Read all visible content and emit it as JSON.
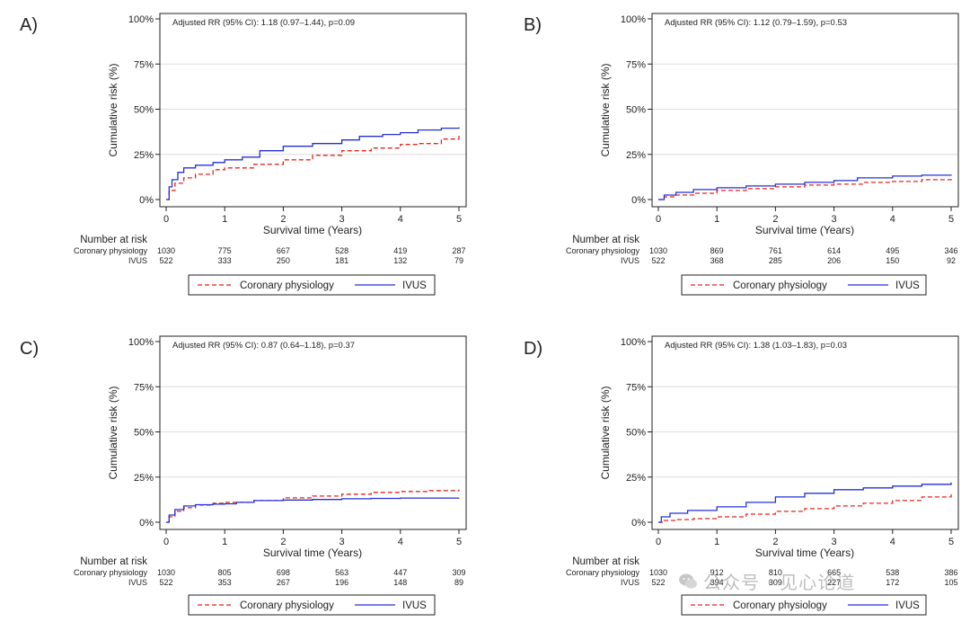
{
  "figure": {
    "watermark_text": "公众号 · 见心论道",
    "colors": {
      "coronary": "#e8251f",
      "ivus": "#2330d6",
      "axis": "#222222",
      "grid": "#dddddd"
    }
  },
  "chart_data": [
    {
      "type": "line",
      "panel_label": "A)",
      "title": "Adjusted RR (95% CI): 1.18 (0.97–1.44), p=0.09",
      "xlabel": "Survival time (Years)",
      "ylabel": "Cumulative risk (%)",
      "xlim": [
        0,
        5
      ],
      "ylim": [
        0,
        100
      ],
      "x_ticks": [
        "0",
        "1",
        "2",
        "3",
        "4",
        "5"
      ],
      "y_ticks": [
        "0%",
        "25%",
        "50%",
        "75%",
        "100%"
      ],
      "series": [
        {
          "name": "Coronary physiology",
          "style": "dashed",
          "x": [
            0,
            0.05,
            0.15,
            0.3,
            0.5,
            0.8,
            1.0,
            1.5,
            2.0,
            2.5,
            3.0,
            3.5,
            4.0,
            4.3,
            4.7,
            5.0
          ],
          "y": [
            0,
            5,
            9,
            12,
            14,
            16.5,
            17.5,
            19.5,
            22,
            24.5,
            27,
            28.5,
            30.5,
            31,
            33.5,
            35.5
          ]
        },
        {
          "name": "IVUS",
          "style": "solid",
          "x": [
            0,
            0.05,
            0.1,
            0.2,
            0.3,
            0.5,
            0.8,
            1.0,
            1.3,
            1.6,
            2.0,
            2.5,
            3.0,
            3.3,
            3.7,
            4.0,
            4.3,
            4.7,
            5.0
          ],
          "y": [
            0,
            7,
            11,
            15,
            17.5,
            19,
            20.5,
            22,
            23.5,
            27,
            29.5,
            31,
            33,
            35,
            36,
            37,
            38.5,
            39.5,
            40
          ]
        }
      ],
      "legend": [
        "Coronary physiology",
        "IVUS"
      ],
      "risk_table": {
        "header": "Number at risk",
        "rows": [
          {
            "label": "Coronary physiology",
            "values": [
              "1030",
              "775",
              "667",
              "528",
              "419",
              "287"
            ]
          },
          {
            "label": "IVUS",
            "values": [
              "522",
              "333",
              "250",
              "181",
              "132",
              "79"
            ]
          }
        ]
      }
    },
    {
      "type": "line",
      "panel_label": "B)",
      "title": "Adjusted RR (95% CI): 1.12 (0.79–1.59), p=0.53",
      "xlabel": "Survival time (Years)",
      "ylabel": "Cumulative risk (%)",
      "xlim": [
        0,
        5
      ],
      "ylim": [
        0,
        100
      ],
      "x_ticks": [
        "0",
        "1",
        "2",
        "3",
        "4",
        "5"
      ],
      "y_ticks": [
        "0%",
        "25%",
        "50%",
        "75%",
        "100%"
      ],
      "series": [
        {
          "name": "Coronary physiology",
          "style": "dashed",
          "x": [
            0,
            0.1,
            0.3,
            0.6,
            1.0,
            1.5,
            2.0,
            2.5,
            3.0,
            3.5,
            4.0,
            4.5,
            5.0
          ],
          "y": [
            0,
            1.5,
            2.5,
            3.5,
            5,
            6,
            7,
            8,
            8.5,
            9.5,
            10,
            11,
            12.5
          ]
        },
        {
          "name": "IVUS",
          "style": "solid",
          "x": [
            0,
            0.1,
            0.3,
            0.6,
            1.0,
            1.5,
            2.0,
            2.5,
            3.0,
            3.4,
            4.0,
            4.5,
            5.0
          ],
          "y": [
            0,
            2.5,
            4,
            5.5,
            6.5,
            7.5,
            8.5,
            9.5,
            10.5,
            12,
            13,
            13.5,
            13.8
          ]
        }
      ],
      "legend": [
        "Coronary physiology",
        "IVUS"
      ],
      "risk_table": {
        "header": "Number at risk",
        "rows": [
          {
            "label": "Coronary physiology",
            "values": [
              "1030",
              "869",
              "761",
              "614",
              "495",
              "346"
            ]
          },
          {
            "label": "IVUS",
            "values": [
              "522",
              "368",
              "285",
              "206",
              "150",
              "92"
            ]
          }
        ]
      }
    },
    {
      "type": "line",
      "panel_label": "C)",
      "title": "Adjusted RR (95% CI): 0.87 (0.64–1.18), p=0.37",
      "xlabel": "Survival time (Years)",
      "ylabel": "Cumulative risk (%)",
      "xlim": [
        0,
        5
      ],
      "ylim": [
        0,
        100
      ],
      "x_ticks": [
        "0",
        "1",
        "2",
        "3",
        "4",
        "5"
      ],
      "y_ticks": [
        "0%",
        "25%",
        "50%",
        "75%",
        "100%"
      ],
      "series": [
        {
          "name": "Coronary physiology",
          "style": "dashed",
          "x": [
            0,
            0.05,
            0.15,
            0.3,
            0.5,
            0.8,
            1.0,
            1.5,
            2.0,
            2.5,
            3.0,
            3.5,
            4.0,
            4.5,
            5.0
          ],
          "y": [
            0,
            3,
            6,
            8,
            9.5,
            10.5,
            11,
            12,
            13.5,
            14.5,
            15.5,
            16.5,
            17,
            17.5,
            18
          ]
        },
        {
          "name": "IVUS",
          "style": "solid",
          "x": [
            0,
            0.05,
            0.15,
            0.3,
            0.5,
            0.8,
            1.0,
            1.2,
            1.5,
            2.0,
            2.5,
            3.0,
            3.5,
            4.0,
            5.0
          ],
          "y": [
            0,
            4,
            7,
            9,
            9.7,
            10,
            10.2,
            11,
            12,
            12.3,
            12.6,
            13,
            13.2,
            13.4,
            13.5
          ]
        }
      ],
      "legend": [
        "Coronary physiology",
        "IVUS"
      ],
      "risk_table": {
        "header": "Number at risk",
        "rows": [
          {
            "label": "Coronary physiology",
            "values": [
              "1030",
              "805",
              "698",
              "563",
              "447",
              "309"
            ]
          },
          {
            "label": "IVUS",
            "values": [
              "522",
              "353",
              "267",
              "196",
              "148",
              "89"
            ]
          }
        ]
      }
    },
    {
      "type": "line",
      "panel_label": "D)",
      "title": "Adjusted RR (95% CI): 1.38 (1.03–1.83), p=0.03",
      "xlabel": "Survival time (Years)",
      "ylabel": "Cumulative risk (%)",
      "xlim": [
        0,
        5
      ],
      "ylim": [
        0,
        100
      ],
      "x_ticks": [
        "0",
        "1",
        "2",
        "3",
        "4",
        "5"
      ],
      "y_ticks": [
        "0%",
        "25%",
        "50%",
        "75%",
        "100%"
      ],
      "series": [
        {
          "name": "Coronary physiology",
          "style": "dashed",
          "x": [
            0,
            0.1,
            0.3,
            0.6,
            1.0,
            1.5,
            2.0,
            2.5,
            3.0,
            3.5,
            4.0,
            4.5,
            5.0
          ],
          "y": [
            0,
            1,
            1.5,
            2,
            3,
            4.5,
            6,
            7.5,
            9,
            10.5,
            12,
            14,
            16.5
          ]
        },
        {
          "name": "IVUS",
          "style": "solid",
          "x": [
            0,
            0.05,
            0.2,
            0.5,
            1.0,
            1.5,
            2.0,
            2.5,
            3.0,
            3.5,
            4.0,
            4.5,
            5.0
          ],
          "y": [
            0,
            3,
            5,
            6.5,
            8.5,
            11,
            14,
            16,
            18,
            19,
            20,
            21,
            22
          ]
        }
      ],
      "legend": [
        "Coronary physiology",
        "IVUS"
      ],
      "risk_table": {
        "header": "Number at risk",
        "rows": [
          {
            "label": "Coronary physiology",
            "values": [
              "1030",
              "912",
              "810",
              "665",
              "538",
              "386"
            ]
          },
          {
            "label": "IVUS",
            "values": [
              "522",
              "394",
              "309",
              "227",
              "172",
              "105"
            ]
          }
        ]
      }
    }
  ]
}
